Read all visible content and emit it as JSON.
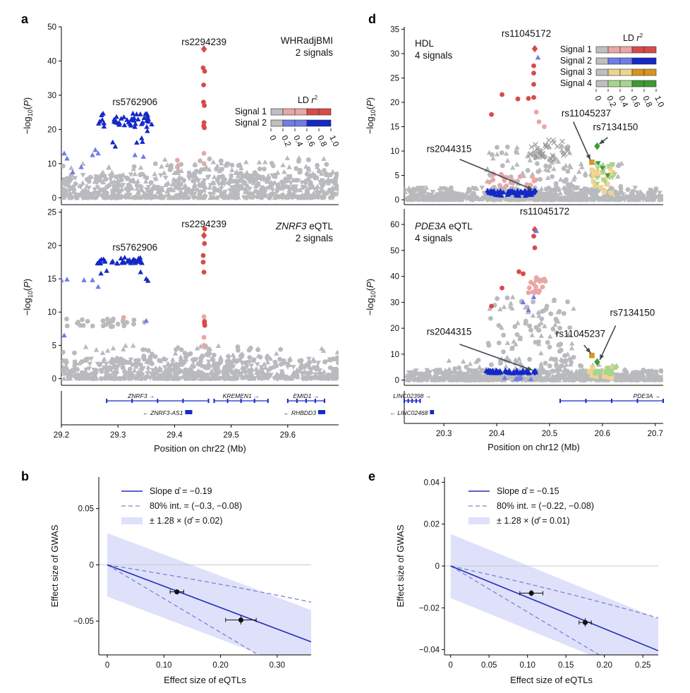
{
  "panels": {
    "a": {
      "letter": "a",
      "xlabel": "Position on chr22 (Mb)",
      "xticks": [
        29.2,
        29.3,
        29.4,
        29.5,
        29.6
      ],
      "xrange": [
        29.2,
        29.69
      ],
      "top": {
        "title_line1": "WHRadjBMI",
        "title_line2": "2 signals",
        "ylabel": "−log10(P)",
        "yticks": [
          0,
          10,
          20,
          30,
          40,
          50
        ],
        "yrange": [
          -2,
          50
        ],
        "lead1": {
          "name": "rs2294239",
          "x": 29.452,
          "y": 43.5
        },
        "lead2": {
          "name": "rs5762906",
          "x": 29.33,
          "y": 25
        },
        "ld_title": "LD r2",
        "signals": [
          "Signal 1",
          "Signal 2"
        ],
        "ld_ticks": [
          "0",
          "0.2",
          "0.4",
          "0.6",
          "0.8",
          "1.0"
        ]
      },
      "bottom": {
        "title_italic": "ZNRF3",
        "title_rest": " eQTL",
        "title_line2": "2 signals",
        "ylabel": "−log10(P)",
        "yticks": [
          0,
          5,
          10,
          15,
          20,
          25
        ],
        "yrange": [
          -1,
          25.5
        ],
        "lead1": {
          "name": "rs2294239",
          "x": 29.452,
          "y": 21.5
        },
        "lead2": {
          "name": "rs5762906",
          "x": 29.33,
          "y": 18.2
        }
      },
      "genes": [
        {
          "name": "ZNRF3",
          "start": 29.28,
          "end": 29.46,
          "row": 0,
          "dir": "right",
          "big": true
        },
        {
          "name": "KREMEN1",
          "start": 29.47,
          "end": 29.565,
          "row": 0,
          "dir": "right",
          "big": false
        },
        {
          "name": "EMID1",
          "start": 29.6,
          "end": 29.665,
          "row": 0,
          "dir": "right",
          "big": false
        },
        {
          "name": "ZNRF3-AS1",
          "start": 29.42,
          "end": 29.43,
          "row": 1,
          "dir": "left",
          "big": false
        },
        {
          "name": "RHBDD3",
          "start": 29.655,
          "end": 29.665,
          "row": 1,
          "dir": "left",
          "big": false
        }
      ]
    },
    "d": {
      "letter": "d",
      "xlabel": "Position on chr12 (Mb)",
      "xticks": [
        20.3,
        20.4,
        20.5,
        20.6,
        20.7
      ],
      "xrange": [
        20.225,
        20.715
      ],
      "top": {
        "title_line1": "HDL",
        "title_line2": "4 signals",
        "ylabel": "−log10(P)",
        "yticks": [
          0,
          5,
          10,
          15,
          20,
          25,
          30,
          35
        ],
        "yrange": [
          -1,
          35.5
        ],
        "leads": [
          {
            "name": "rs11045172",
            "x": 20.472,
            "y": 31
          },
          {
            "name": "rs11045237",
            "x": 20.58,
            "y": 7.7
          },
          {
            "name": "rs7134150",
            "x": 20.59,
            "y": 11
          },
          {
            "name": "rs2044315",
            "x": 20.472,
            "y": 1.7
          }
        ],
        "ld_title": "LD r2",
        "signals": [
          "Signal 1",
          "Signal 2",
          "Signal 3",
          "Signal 4"
        ],
        "ld_ticks": [
          "0",
          "0.2",
          "0.4",
          "0.6",
          "0.8",
          "1.0"
        ]
      },
      "bottom": {
        "title_italic": "PDE3A",
        "title_rest": " eQTL",
        "title_line2": "4 signals",
        "ylabel": "−log10(P)",
        "yticks": [
          0,
          10,
          20,
          30,
          40,
          50,
          60
        ],
        "yrange": [
          -2,
          66
        ],
        "leads": [
          {
            "name": "rs11045172",
            "x": 20.472,
            "y": 58
          },
          {
            "name": "rs11045237",
            "x": 20.58,
            "y": 9.5
          },
          {
            "name": "rs7134150",
            "x": 20.59,
            "y": 7
          },
          {
            "name": "rs2044315",
            "x": 20.472,
            "y": 3.2
          }
        ]
      },
      "genes": [
        {
          "name": "LINC02398",
          "start": 20.225,
          "end": 20.255,
          "row": 0,
          "dir": "right",
          "big": false
        },
        {
          "name": "PDE3A",
          "start": 20.52,
          "end": 20.715,
          "row": 0,
          "dir": "right",
          "big": true
        },
        {
          "name": "LINC02468",
          "start": 20.275,
          "end": 20.28,
          "row": 1,
          "dir": "left",
          "big": false
        }
      ]
    },
    "b": {
      "letter": "b",
      "xlabel": "Effect size of eQTLs",
      "ylabel": "Effect size of GWAS",
      "xticks": [
        "0",
        "0.10",
        "0.20",
        "0.30"
      ],
      "xtick_values": [
        0,
        0.1,
        0.2,
        0.3
      ],
      "yticks": [
        "0.05",
        "0",
        "−0.05"
      ],
      "ytick_values": [
        0.05,
        0,
        -0.05
      ],
      "xrange": [
        -0.015,
        0.36
      ],
      "yrange": [
        -0.08,
        0.078
      ],
      "slope": -0.19,
      "int_lo": -0.3,
      "int_hi": -0.08,
      "band": 0.0282,
      "points": [
        {
          "x": 0.123,
          "y": -0.024,
          "xerr": 0.012,
          "yerr": 0.0015
        },
        {
          "x": 0.236,
          "y": -0.049,
          "xerr": 0.027,
          "yerr": 0.004
        }
      ],
      "legend": {
        "slope": "Slope α̂ = −0.19",
        "interval": "80% int. = (−0.3, −0.08)",
        "band": "± 1.28 × (σ̂ = 0.02)"
      }
    },
    "e": {
      "letter": "e",
      "xlabel": "Effect size of eQTLs",
      "ylabel": "Effect size of GWAS",
      "xticks": [
        "0",
        "0.05",
        "0.10",
        "0.15",
        "0.20",
        "0.25"
      ],
      "xtick_values": [
        0,
        0.05,
        0.1,
        0.15,
        0.2,
        0.25
      ],
      "yticks": [
        "0.04",
        "0.02",
        "0",
        "−0.02",
        "−0.04"
      ],
      "ytick_values": [
        0.04,
        0.02,
        0,
        -0.02,
        -0.04
      ],
      "xrange": [
        -0.008,
        0.27
      ],
      "yrange": [
        -0.0425,
        0.0425
      ],
      "slope": -0.15,
      "int_lo": -0.22,
      "int_hi": -0.08,
      "band": 0.0153,
      "points": [
        {
          "x": 0.105,
          "y": -0.013,
          "xerr": 0.015,
          "yerr": 0.0015
        },
        {
          "x": 0.175,
          "y": -0.027,
          "xerr": 0.008,
          "yerr": 0.002
        }
      ],
      "legend": {
        "slope": "Slope α̂ = −0.15",
        "interval": "80% int. = (−0.22, −0.08)",
        "band": "± 1.28 × (σ̂ = 0.01)"
      }
    }
  },
  "chart_data": [
    {
      "type": "scatter",
      "title": "WHRadjBMI 2 signals",
      "xlabel": "Position on chr22 (Mb)",
      "ylabel": "-log10(P)",
      "xlim": [
        29.2,
        29.69
      ],
      "ylim": [
        0,
        50
      ],
      "series": [
        {
          "name": "Signal 1 lead rs2294239",
          "x": [
            29.452
          ],
          "y": [
            43.5
          ]
        },
        {
          "name": "Signal 1 credible SNPs",
          "x": [
            29.452,
            29.452,
            29.452,
            29.452,
            29.452,
            29.452,
            29.452
          ],
          "y": [
            38,
            37,
            33,
            28,
            27,
            22,
            21
          ]
        },
        {
          "name": "Signal 2 cluster rs5762906",
          "x": [
            29.26,
            29.3,
            29.33,
            29.34
          ],
          "y": [
            22,
            22,
            25,
            24
          ]
        }
      ]
    },
    {
      "type": "scatter",
      "title": "ZNRF3 eQTL 2 signals",
      "xlabel": "Position on chr22 (Mb)",
      "ylabel": "-log10(P)",
      "xlim": [
        29.2,
        29.69
      ],
      "ylim": [
        0,
        25
      ],
      "series": [
        {
          "name": "Signal 1 lead rs2294239",
          "x": [
            29.452
          ],
          "y": [
            21.5
          ]
        },
        {
          "name": "Signal 2 cluster rs5762906",
          "x": [
            29.26,
            29.3,
            29.33
          ],
          "y": [
            17.7,
            17.8,
            18.2
          ]
        }
      ]
    },
    {
      "type": "scatter",
      "title": "HDL 4 signals",
      "xlabel": "Position on chr12 (Mb)",
      "ylabel": "-log10(P)",
      "xlim": [
        20.225,
        20.715
      ],
      "ylim": [
        0,
        35
      ],
      "series": [
        {
          "name": "rs11045172",
          "x": [
            20.472
          ],
          "y": [
            31
          ]
        },
        {
          "name": "rs11045237",
          "x": [
            20.58
          ],
          "y": [
            7.7
          ]
        },
        {
          "name": "rs7134150",
          "x": [
            20.59
          ],
          "y": [
            11
          ]
        },
        {
          "name": "rs2044315",
          "x": [
            20.472
          ],
          "y": [
            1.7
          ]
        }
      ]
    },
    {
      "type": "scatter",
      "title": "PDE3A eQTL 4 signals",
      "xlabel": "Position on chr12 (Mb)",
      "ylabel": "-log10(P)",
      "xlim": [
        20.225,
        20.715
      ],
      "ylim": [
        0,
        65
      ],
      "series": [
        {
          "name": "rs11045172",
          "x": [
            20.472
          ],
          "y": [
            58
          ]
        },
        {
          "name": "rs11045237",
          "x": [
            20.58
          ],
          "y": [
            9.5
          ]
        },
        {
          "name": "rs7134150",
          "x": [
            20.59
          ],
          "y": [
            7
          ]
        },
        {
          "name": "rs2044315",
          "x": [
            20.472
          ],
          "y": [
            3.2
          ]
        }
      ]
    },
    {
      "type": "scatter",
      "title": "b",
      "xlabel": "Effect size of eQTLs",
      "ylabel": "Effect size of GWAS",
      "slope": -0.19,
      "interval": [
        -0.3,
        -0.08
      ],
      "sigma": 0.02,
      "series": [
        {
          "name": "signals",
          "x": [
            0.123,
            0.236
          ],
          "y": [
            -0.024,
            -0.049
          ]
        }
      ]
    },
    {
      "type": "scatter",
      "title": "e",
      "xlabel": "Effect size of eQTLs",
      "ylabel": "Effect size of GWAS",
      "slope": -0.15,
      "interval": [
        -0.22,
        -0.08
      ],
      "sigma": 0.01,
      "series": [
        {
          "name": "signals",
          "x": [
            0.105,
            0.175
          ],
          "y": [
            -0.013,
            -0.027
          ]
        }
      ]
    }
  ],
  "colors": {
    "grey": "#b9babd",
    "red_dark": "#d84a4a",
    "red_light": "#eaa6a6",
    "blue_dark": "#1428c8",
    "blue_light": "#6f7be6",
    "orange_dark": "#d9941e",
    "orange_light": "#efd48e",
    "green_dark": "#3f9a2f",
    "green_light": "#a6d58e",
    "line": "#2230b8",
    "band": "#dfe1fb"
  }
}
